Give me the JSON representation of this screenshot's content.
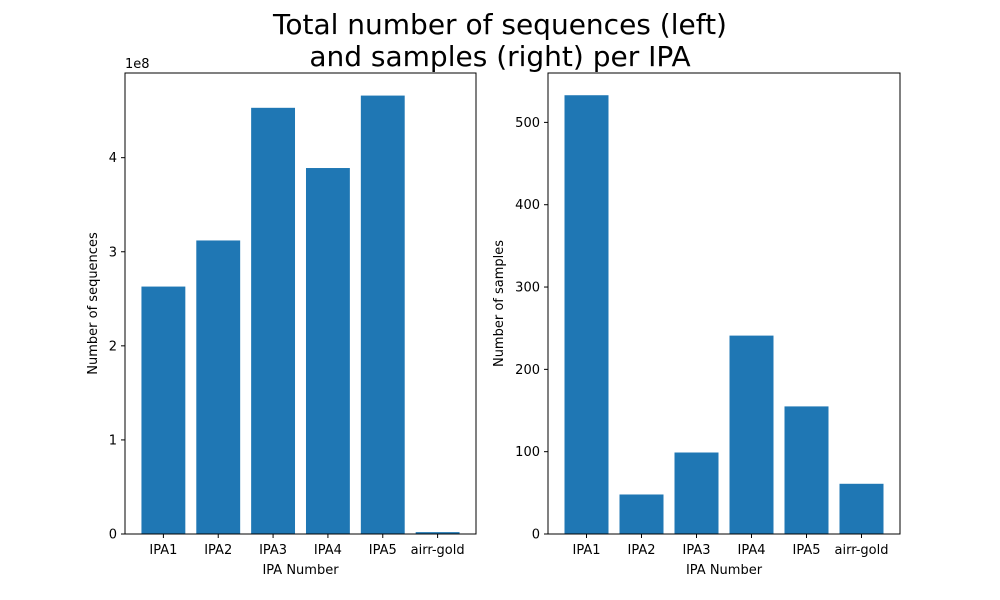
{
  "figure": {
    "title_line1": "Total number of sequences (left)",
    "title_line2": "and samples (right) per IPA"
  },
  "colors": {
    "bar": "#1f77b4",
    "axis": "#000000"
  },
  "chart_data": [
    {
      "type": "bar",
      "categories": [
        "IPA1",
        "IPA2",
        "IPA3",
        "IPA4",
        "IPA5",
        "airr-gold"
      ],
      "values": [
        263000000,
        312000000,
        453000000,
        389000000,
        466000000,
        2000000
      ],
      "xlabel": "IPA Number",
      "ylabel": "Number of sequences",
      "ylim": [
        0,
        490000000
      ],
      "y_ticks": [
        0,
        100000000,
        200000000,
        300000000,
        400000000
      ],
      "y_tick_labels": [
        "0",
        "1",
        "2",
        "3",
        "4"
      ],
      "y_offset_label": "1e8",
      "grid": false
    },
    {
      "type": "bar",
      "categories": [
        "IPA1",
        "IPA2",
        "IPA3",
        "IPA4",
        "IPA5",
        "airr-gold"
      ],
      "values": [
        533,
        48,
        99,
        241,
        155,
        61
      ],
      "xlabel": "IPA Number",
      "ylabel": "Number of samples",
      "ylim": [
        0,
        560
      ],
      "y_ticks": [
        0,
        100,
        200,
        300,
        400,
        500
      ],
      "y_tick_labels": [
        "0",
        "100",
        "200",
        "300",
        "400",
        "500"
      ],
      "grid": false
    }
  ]
}
